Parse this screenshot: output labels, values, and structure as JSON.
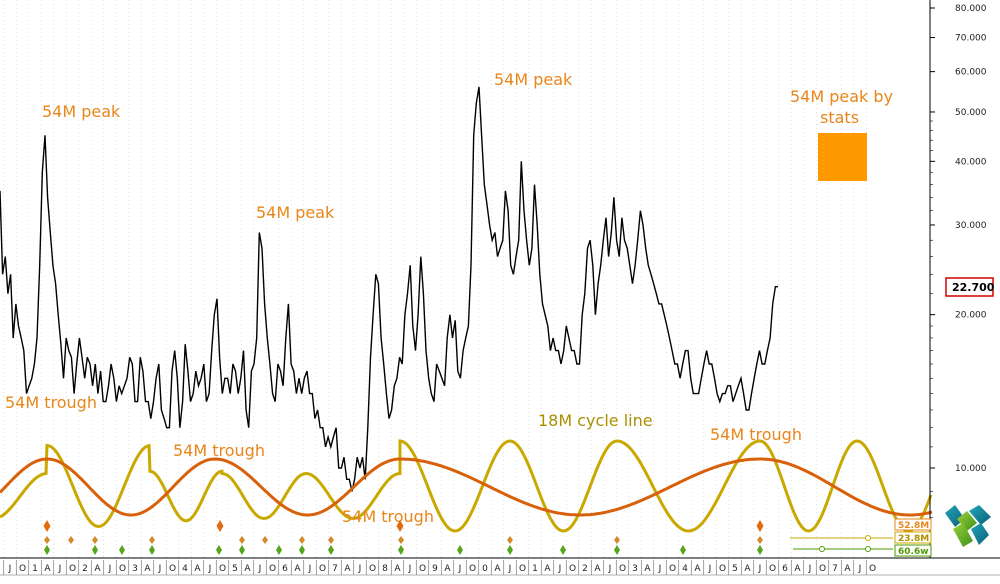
{
  "colors": {
    "price": "#000000",
    "orange": "#e8861a",
    "cycle18": "#c9a800",
    "cycle54": "#d9600a",
    "stats_box": "#ff9900",
    "marker_green": "#55a61b",
    "marker_orange": "#e06a10",
    "price_box": "#d40000",
    "badge_green": "#4e9a06"
  },
  "chart_data": {
    "type": "line",
    "y_scale": "log",
    "ylim": [
      7.5,
      90
    ],
    "y_ticks": [
      "80.000",
      "70.000",
      "60.000",
      "50.000",
      "40.000",
      "30.000",
      "20.000",
      "10.000"
    ],
    "y_tick_values": [
      80,
      70,
      60,
      50,
      40,
      30,
      20,
      10
    ],
    "last_price_label": "22.700",
    "last_price": 22.7,
    "x_labels": [
      "J",
      "O",
      "1",
      "A",
      "J",
      "O",
      "2",
      "A",
      "J",
      "O",
      "3",
      "A",
      "J",
      "O",
      "4",
      "A",
      "J",
      "O",
      "5",
      "A",
      "J",
      "O",
      "6",
      "A",
      "J",
      "O",
      "7",
      "A",
      "J",
      "O",
      "8",
      "A",
      "J",
      "O",
      "9",
      "A",
      "J",
      "O",
      "0",
      "A",
      "J",
      "O",
      "1",
      "A",
      "J",
      "O",
      "2",
      "A",
      "J",
      "O",
      "3",
      "A",
      "J",
      "O",
      "4",
      "A",
      "J",
      "O",
      "5",
      "A",
      "J",
      "O",
      "6",
      "A",
      "J",
      "O",
      "7",
      "A",
      "J",
      "O"
    ],
    "series": [
      {
        "values": [
          35,
          24,
          26,
          22,
          24,
          18,
          21,
          19,
          18,
          17,
          14,
          14.5,
          15,
          16,
          18,
          25,
          38,
          45,
          34,
          29,
          25,
          23,
          20,
          17.5,
          15,
          18,
          17,
          16.5,
          14,
          16,
          18,
          16.5,
          15,
          16.5,
          16,
          14.5,
          16,
          14,
          15.5,
          13.5,
          13.5,
          14.5,
          16,
          15,
          13.5,
          14.5,
          14,
          14.5,
          15,
          16.5,
          16,
          13.5,
          13.5,
          16.5,
          15.5,
          13.5,
          13.5,
          12.5,
          13.5,
          15,
          16,
          13,
          12.5,
          12,
          12,
          15.5,
          17,
          15,
          12,
          13.5,
          17.5,
          15.5,
          13.5,
          14,
          15.5,
          14.5,
          15,
          16,
          13.5,
          14,
          17,
          20,
          21.5,
          16.5,
          14,
          15,
          15,
          14,
          16,
          15.5,
          14,
          15,
          17,
          13,
          12,
          15.5,
          16,
          18,
          29,
          27,
          21,
          18,
          16,
          14,
          13.5,
          16,
          15.5,
          14.5,
          18,
          21,
          16,
          15.5,
          14,
          15,
          14,
          15,
          15.5,
          14,
          14,
          12.5,
          13,
          12,
          12,
          11,
          11.5,
          11,
          11.5,
          12,
          10,
          10,
          10.5,
          9.5,
          9.5,
          9,
          9.5,
          10.5,
          10,
          10.5,
          9.5,
          12,
          16.5,
          20,
          24,
          23,
          18,
          16,
          14,
          12.5,
          13,
          14.5,
          15,
          16.5,
          16,
          20,
          22,
          25,
          19,
          17,
          20,
          26,
          22,
          17,
          15,
          14,
          13.5,
          16,
          15.5,
          15,
          14.5,
          18,
          20,
          18,
          19.5,
          15.5,
          15,
          17,
          18,
          19,
          25,
          45,
          52,
          56,
          45,
          36,
          33,
          30,
          28,
          29,
          26,
          27,
          28,
          35,
          32,
          25,
          24,
          26,
          28,
          40,
          32,
          28,
          25,
          27,
          36,
          30,
          24,
          21,
          20,
          19,
          17,
          18,
          17,
          17,
          16,
          17,
          19,
          18,
          17,
          17,
          16,
          16,
          20,
          22,
          27,
          28,
          25,
          20,
          23,
          25,
          28,
          31,
          26,
          29,
          34,
          28,
          26,
          31,
          28,
          27,
          25,
          23,
          25,
          28,
          32,
          30,
          27,
          25,
          24,
          23,
          22,
          21,
          21,
          20,
          19,
          18,
          17,
          16,
          16,
          15,
          16,
          17,
          17,
          15,
          14,
          14,
          14,
          15,
          16,
          17,
          16,
          16,
          15,
          14,
          13.5,
          14,
          14,
          14.5,
          14.5,
          13.5,
          14,
          14.5,
          15,
          14,
          13,
          13,
          14,
          15,
          16,
          17,
          16,
          16,
          17,
          18,
          21,
          22.7,
          22.7
        ],
        "color": "#000000"
      }
    ],
    "annotations": [
      {
        "text": "54M peak"
      },
      {
        "text": "54M peak"
      },
      {
        "text": "54M peak"
      },
      {
        "text": "54M peak by"
      },
      {
        "text": "stats"
      },
      {
        "text": "54M trough"
      },
      {
        "text": "54M trough"
      },
      {
        "text": "54M trough"
      },
      {
        "text": "54M trough"
      },
      {
        "text": "18M cycle line"
      }
    ],
    "cycle_labels": [
      "52.8M",
      "23.8M",
      "60.6w"
    ]
  }
}
